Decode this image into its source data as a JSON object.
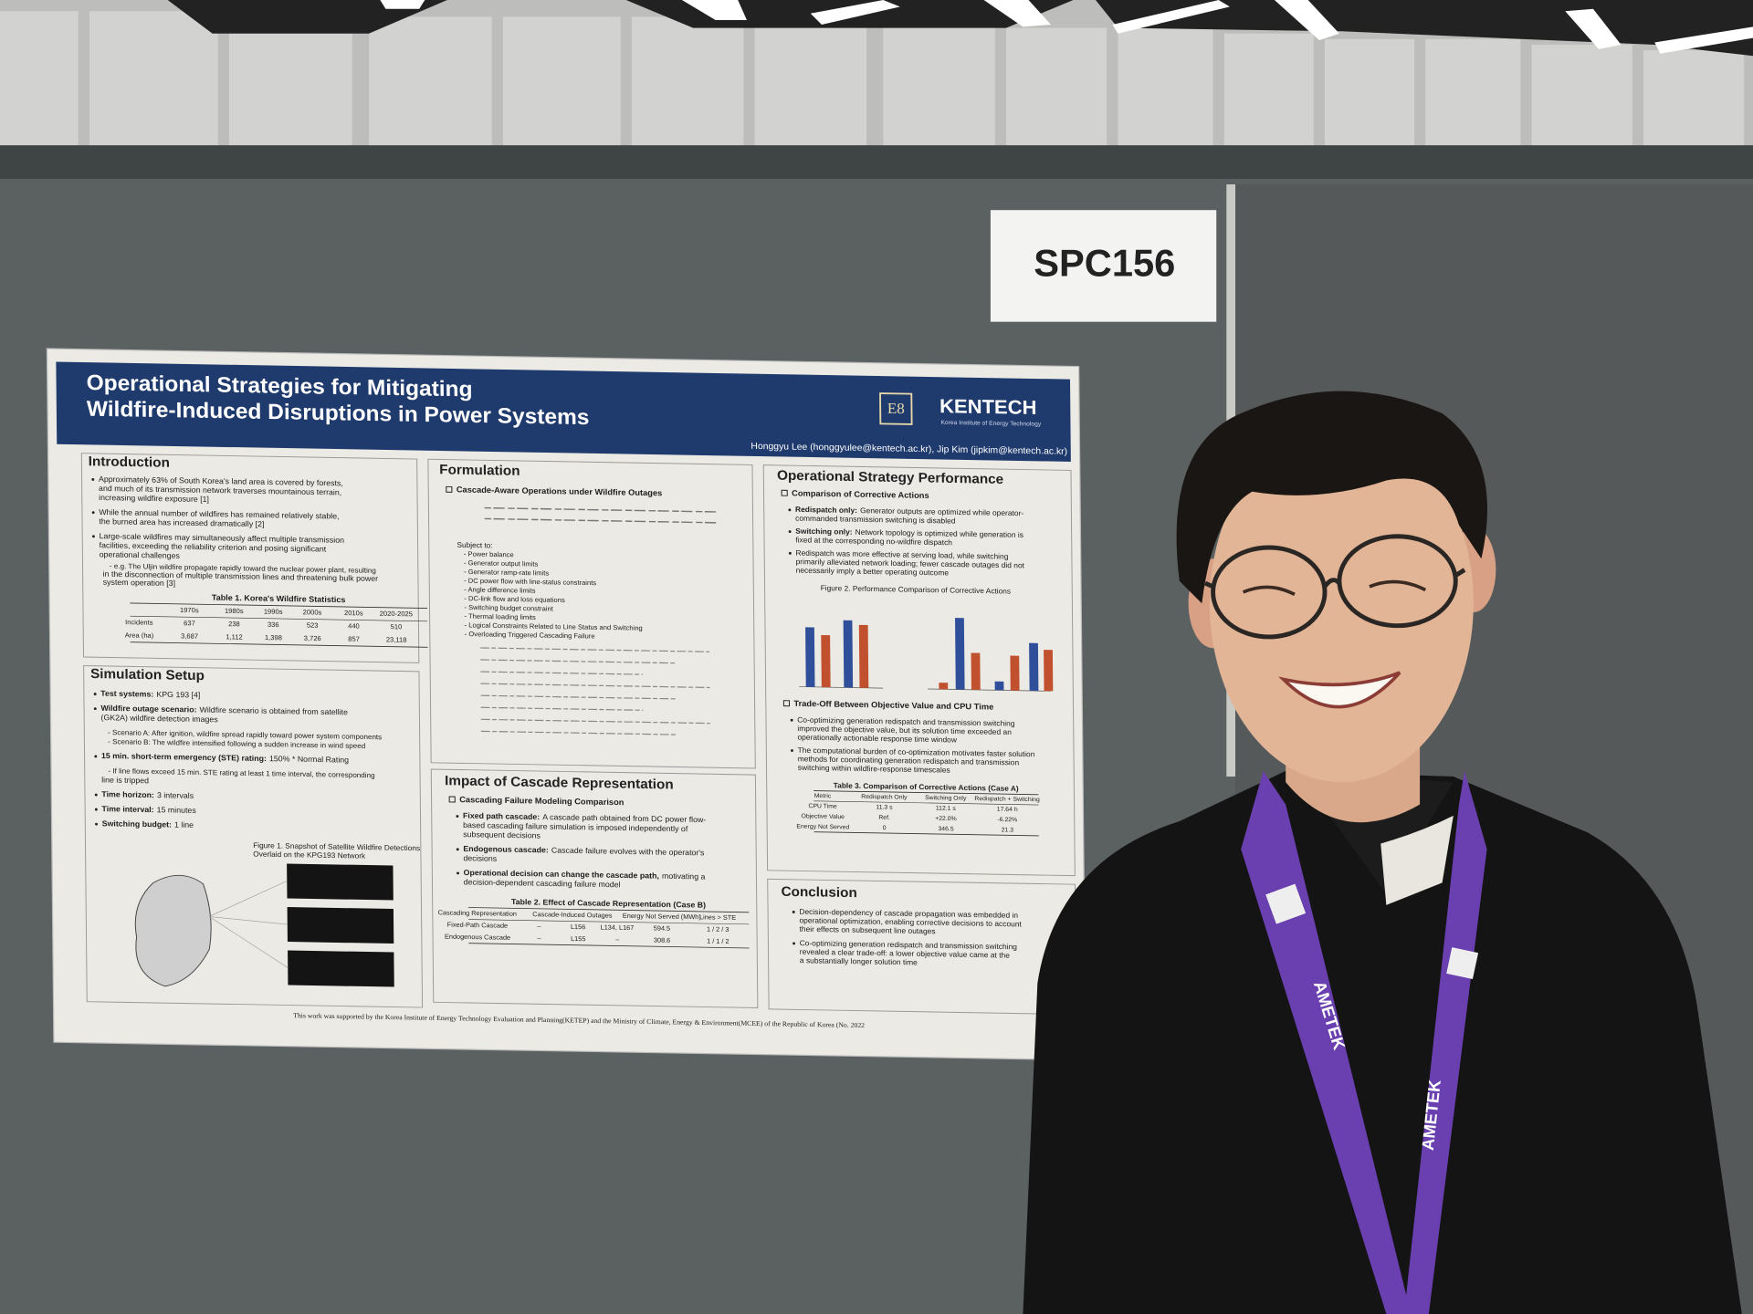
{
  "sign": "SPC156",
  "poster": {
    "title": [
      "Operational Strategies for Mitigating",
      "Wildfire-Induced Disruptions in Power Systems"
    ],
    "logo_mark": "E8",
    "logo": "KENTECH",
    "logo_sub": "Korea Institute of Energy Technology",
    "authors": "Honggyu Lee (honggyulee@kentech.ac.kr), Jip Kim (jipkim@kentech.ac.kr)",
    "introduction": {
      "heading": "Introduction",
      "bullets": [
        [
          "Approximately 63% of South Korea's land area is covered by forests,",
          "and much of its transmission network traverses mountainous terrain,",
          "increasing wildfire exposure [1]"
        ],
        [
          "While the annual number of wildfires has remained relatively stable,",
          "the burned area has increased dramatically [2]"
        ],
        [
          "Large-scale wildfires may simultaneously affect multiple transmission",
          "facilities, exceeding the reliability criterion and posing significant",
          "operational challenges"
        ]
      ],
      "example": [
        "- e.g. The Uljin wildfire propagate rapidly toward the nuclear power plant, resulting",
        "in the disconnection of multiple transmission lines and threatening bulk power",
        "system operation [3]"
      ]
    },
    "table1": {
      "caption": "Table 1. Korea's Wildfire Statistics",
      "header": [
        "1970s",
        "1980s",
        "1990s",
        "2000s",
        "2010s",
        "2020-2025"
      ],
      "rows": [
        [
          "Incidents",
          "637",
          "238",
          "336",
          "523",
          "440",
          "510"
        ],
        [
          "Area (ha)",
          "3,687",
          "1,112",
          "1,398",
          "3,726",
          "857",
          "23,118"
        ]
      ]
    },
    "simulation": {
      "heading": "Simulation Setup",
      "items": [
        {
          "label": "Test systems:",
          "lines": [
            "KPG 193 [4]"
          ]
        },
        {
          "label": "Wildfire outage scenario:",
          "lines": [
            "Wildfire scenario is obtained from satellite",
            "(GK2A) wildfire detection images"
          ]
        },
        {
          "lines": [
            "- Scenario A: After ignition, wildfire spread rapidly toward power system components",
            "- Scenario B: The wildfire intensified following a sudden increase in wind speed"
          ]
        },
        {
          "label": "15 min. short-term emergency (STE) rating:",
          "lines": [
            "150% * Normal Rating"
          ]
        },
        {
          "lines": [
            "- If line flows exceed 15 min. STE rating at least 1 time interval, the corresponding",
            "line is tripped"
          ]
        },
        {
          "label": "Time horizon:",
          "lines": [
            "3 intervals"
          ]
        },
        {
          "label": "Time interval:",
          "lines": [
            "15 minutes"
          ]
        },
        {
          "label": "Switching budget:",
          "lines": [
            "1 line"
          ]
        }
      ]
    },
    "figure1": [
      "Figure 1. Snapshot of Satellite Wildfire Detections",
      "Overlaid on the KPG193 Network"
    ],
    "formulation": {
      "heading": "Formulation",
      "subheading": "Cascade-Aware Operations under Wildfire Outages",
      "constraints": [
        "Subject to:",
        "- Power balance",
        "- Generator output limits",
        "- Generator ramp-rate limits",
        "- DC power flow with line-status constraints",
        "- Angle difference limits",
        "- DC-link flow and loss equations",
        "- Switching budget constraint",
        "- Thermal loading limits",
        "- Logical Constraints Related to Line Status and Switching",
        "- Overloading Triggered Cascading Failure"
      ]
    },
    "impact": {
      "heading": "Impact of Cascade Representation",
      "subheading": "Cascading Failure Modeling Comparison",
      "items": [
        {
          "label": "Fixed path cascade:",
          "lines": [
            "A cascade path obtained from DC power flow-",
            "based cascading failure simulation is imposed independently of",
            "subsequent decisions"
          ]
        },
        {
          "label": "Endogenous cascade:",
          "lines": [
            "Cascade failure evolves with the operator's",
            "decisions"
          ]
        },
        {
          "label": "Operational decision can change the cascade path,",
          "lines": [
            "motivating a",
            "decision-dependent cascading failure model"
          ]
        }
      ]
    },
    "table2": {
      "caption": "Table 2. Effect of Cascade Representation (Case B)",
      "header": [
        "Cascading Representation",
        "Cascade-Induced Outages",
        "Energy Not Served (MWh)",
        "Lines > STE"
      ],
      "rows": [
        [
          "Fixed-Path Cascade",
          "–",
          "L156",
          "L134, L167",
          "594.5",
          "1 / 2 / 3"
        ],
        [
          "Endogenous Cascade",
          "–",
          "L155",
          "–",
          "308.6",
          "1 / 1 / 2"
        ]
      ]
    },
    "performance": {
      "heading": "Operational Strategy Performance",
      "subheading": "Comparison of Corrective Actions",
      "items": [
        {
          "label": "Redispatch only:",
          "lines": [
            "Generator outputs are optimized while operator-",
            "commanded transmission switching is disabled"
          ]
        },
        {
          "label": "Switching only:",
          "lines": [
            "Network topology is optimized while generation is",
            "fixed at the corresponding no-wildfire dispatch"
          ]
        },
        {
          "lines": [
            "Redispatch was more effective at serving load, while switching",
            "primarily alleviated network loading; fewer cascade outages did not",
            "necessarily imply a better operating outcome"
          ]
        }
      ],
      "figure2": "Figure 2. Performance Comparison of Corrective Actions",
      "subheading2": "Trade-Off Between Objective Value and CPU Time",
      "items2": [
        {
          "lines": [
            "Co-optimizing generation redispatch and transmission switching",
            "improved the objective value, but its solution time exceeded an",
            "operationally actionable response time window"
          ]
        },
        {
          "lines": [
            "The computational burden of co-optimization motivates faster solution",
            "methods for coordinating generation redispatch and transmission",
            "switching within wildfire-response timescales"
          ]
        }
      ]
    },
    "table3": {
      "caption": "Table 3. Comparison of Corrective Actions (Case A)",
      "header": [
        "Metric",
        "Redispatch Only",
        "Switching Only",
        "Redispatch + Switching"
      ],
      "rows": [
        [
          "CPU Time",
          "11.3 s",
          "112.1 s",
          "17.64 h"
        ],
        [
          "Objective Value",
          "Ref.",
          "+22.0%",
          "-6.22%"
        ],
        [
          "Energy Not Served",
          "0",
          "346.5",
          "21.3"
        ]
      ]
    },
    "conclusion": {
      "heading": "Conclusion",
      "items": [
        {
          "lines": [
            "Decision-dependency of cascade propagation was embedded in",
            "operational optimization, enabling corrective decisions to account",
            "their effects on subsequent line outages"
          ]
        },
        {
          "lines": [
            "Co-optimizing generation redispatch and transmission switching",
            "revealed a clear trade-off: a lower objective value came at the",
            "a substantially longer solution time"
          ]
        }
      ]
    },
    "footer": "This work was supported by the Korea Institute of Energy Technology Evaluation and Planning(KETEP) and the Ministry of Climate, Energy & Environment(MCEE) of the Republic of Korea (No. 2022"
  },
  "lanyard": "AMETEK"
}
